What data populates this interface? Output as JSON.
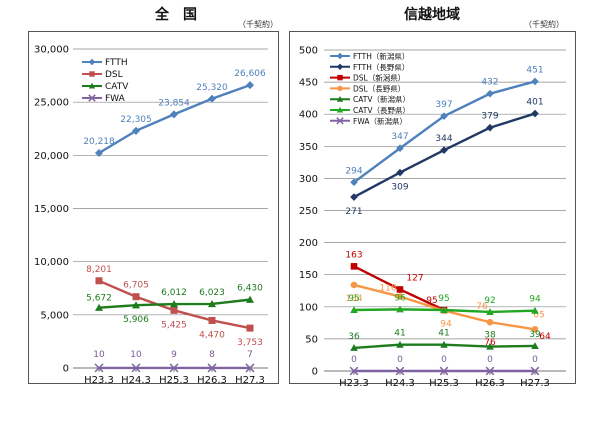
{
  "charts": {
    "left": {
      "title": "全　国",
      "unit": "（千契約）"
    },
    "right": {
      "title": "信越地域",
      "unit": "（千契約）"
    }
  },
  "chart_data": [
    {
      "type": "line",
      "title": "全　国",
      "unit": "（千契約）",
      "categories": [
        "H23.3",
        "H24.3",
        "H25.3",
        "H26.3",
        "H27.3"
      ],
      "ylim": [
        0,
        30000
      ],
      "yticks": [
        "0",
        "5,000",
        "10,000",
        "15,000",
        "20,000",
        "25,000",
        "30,000"
      ],
      "ytick_values": [
        0,
        5000,
        10000,
        15000,
        20000,
        25000,
        30000
      ],
      "grid": true,
      "legend_position": "top-left",
      "series": [
        {
          "name": "FTTH",
          "color": "#4F81BD",
          "marker": "diamond",
          "values": [
            20218,
            22305,
            23854,
            25320,
            26606
          ],
          "labels": [
            "20,218",
            "22,305",
            "23,854",
            "25,320",
            "26,606"
          ]
        },
        {
          "name": "DSL",
          "color": "#C0504D",
          "marker": "square",
          "values": [
            8201,
            6705,
            5425,
            4470,
            3753
          ],
          "labels": [
            "8,201",
            "6,705",
            "5,425",
            "4,470",
            "3,753"
          ]
        },
        {
          "name": "CATV",
          "color": "#1E7B1E",
          "marker": "triangle",
          "values": [
            5672,
            5906,
            6012,
            6023,
            6430
          ],
          "labels": [
            "5,672",
            "5,906",
            "6,012",
            "6,023",
            "6,430"
          ]
        },
        {
          "name": "FWA",
          "color": "#8064A2",
          "marker": "x",
          "values": [
            10,
            10,
            9,
            8,
            7
          ],
          "labels": [
            "10",
            "10",
            "9",
            "8",
            "7"
          ]
        }
      ]
    },
    {
      "type": "line",
      "title": "信越地域",
      "unit": "（千契約）",
      "categories": [
        "H23.3",
        "H24.3",
        "H25.3",
        "H26.3",
        "H27.3"
      ],
      "ylim": [
        0,
        500
      ],
      "yticks": [
        "0",
        "50",
        "100",
        "150",
        "200",
        "250",
        "300",
        "350",
        "400",
        "450",
        "500"
      ],
      "ytick_values": [
        0,
        50,
        100,
        150,
        200,
        250,
        300,
        350,
        400,
        450,
        500
      ],
      "grid": true,
      "legend_position": "top-left",
      "series": [
        {
          "name": "FTTH（新潟県）",
          "color": "#4F81BD",
          "marker": "diamond",
          "values": [
            294,
            347,
            397,
            432,
            451
          ],
          "labels": [
            "294",
            "347",
            "397",
            "432",
            "451"
          ]
        },
        {
          "name": "FTTH（長野県）",
          "color": "#1F3864",
          "marker": "diamond",
          "values": [
            271,
            309,
            344,
            379,
            401
          ],
          "labels": [
            "271",
            "309",
            "344",
            "379",
            "401"
          ]
        },
        {
          "name": "DSL（新潟県）",
          "color": "#C00000",
          "marker": "square",
          "values": [
            163,
            127,
            95,
            null,
            null
          ],
          "labels": [
            "163",
            "127",
            "95",
            "",
            ""
          ]
        },
        {
          "name": "DSL（長野県）",
          "color": "#F79646",
          "marker": "circle",
          "values": [
            134,
            116,
            94,
            76,
            65
          ],
          "labels": [
            "134",
            "116",
            "94",
            "76",
            "65"
          ]
        },
        {
          "name": "CATV（新潟県）",
          "color": "#1E7B1E",
          "marker": "triangle",
          "values": [
            36,
            41,
            41,
            38,
            39
          ],
          "labels": [
            "36",
            "41",
            "41",
            "38",
            "39"
          ]
        },
        {
          "name": "CATV（長野県）",
          "color": "#22A722",
          "marker": "triangle",
          "values": [
            95,
            96,
            95,
            92,
            94
          ],
          "labels": [
            "95",
            "96",
            "95",
            "92",
            "94"
          ]
        },
        {
          "name": "FWA（新潟県）",
          "color": "#8064A2",
          "marker": "x",
          "values": [
            0,
            0,
            0,
            0,
            0
          ],
          "labels": [
            "0",
            "0",
            "0",
            "0",
            "0"
          ]
        }
      ],
      "extra_labels": [
        "76",
        "64"
      ]
    }
  ]
}
